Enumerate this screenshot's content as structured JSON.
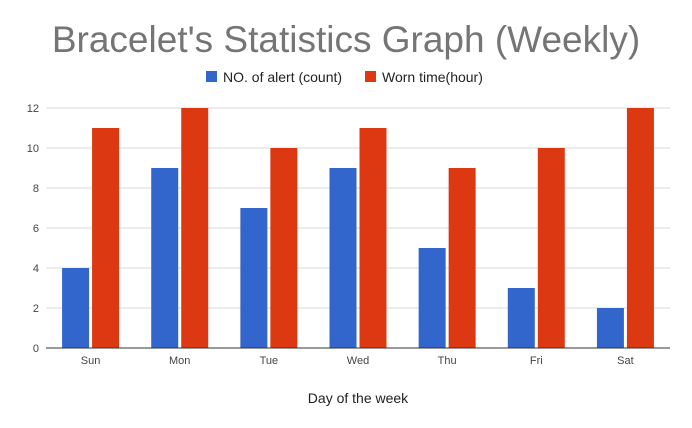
{
  "chart_data": {
    "type": "bar",
    "title": "Bracelet's Statistics Graph (Weekly)",
    "xlabel": "Day of the week",
    "ylabel": "",
    "categories": [
      "Sun",
      "Mon",
      "Tue",
      "Wed",
      "Thu",
      "Fri",
      "Sat"
    ],
    "series": [
      {
        "name": "NO. of alert (count)",
        "color": "#3366cc",
        "values": [
          4,
          9,
          7,
          9,
          5,
          3,
          2
        ]
      },
      {
        "name": "Worn time(hour)",
        "color": "#dc3912",
        "values": [
          11,
          12,
          10,
          11,
          9,
          10,
          12
        ]
      }
    ],
    "ylim": [
      0,
      12
    ],
    "yticks": [
      "0",
      "2",
      "4",
      "6",
      "8",
      "10",
      "12"
    ],
    "grid": true,
    "legend_position": "top"
  }
}
